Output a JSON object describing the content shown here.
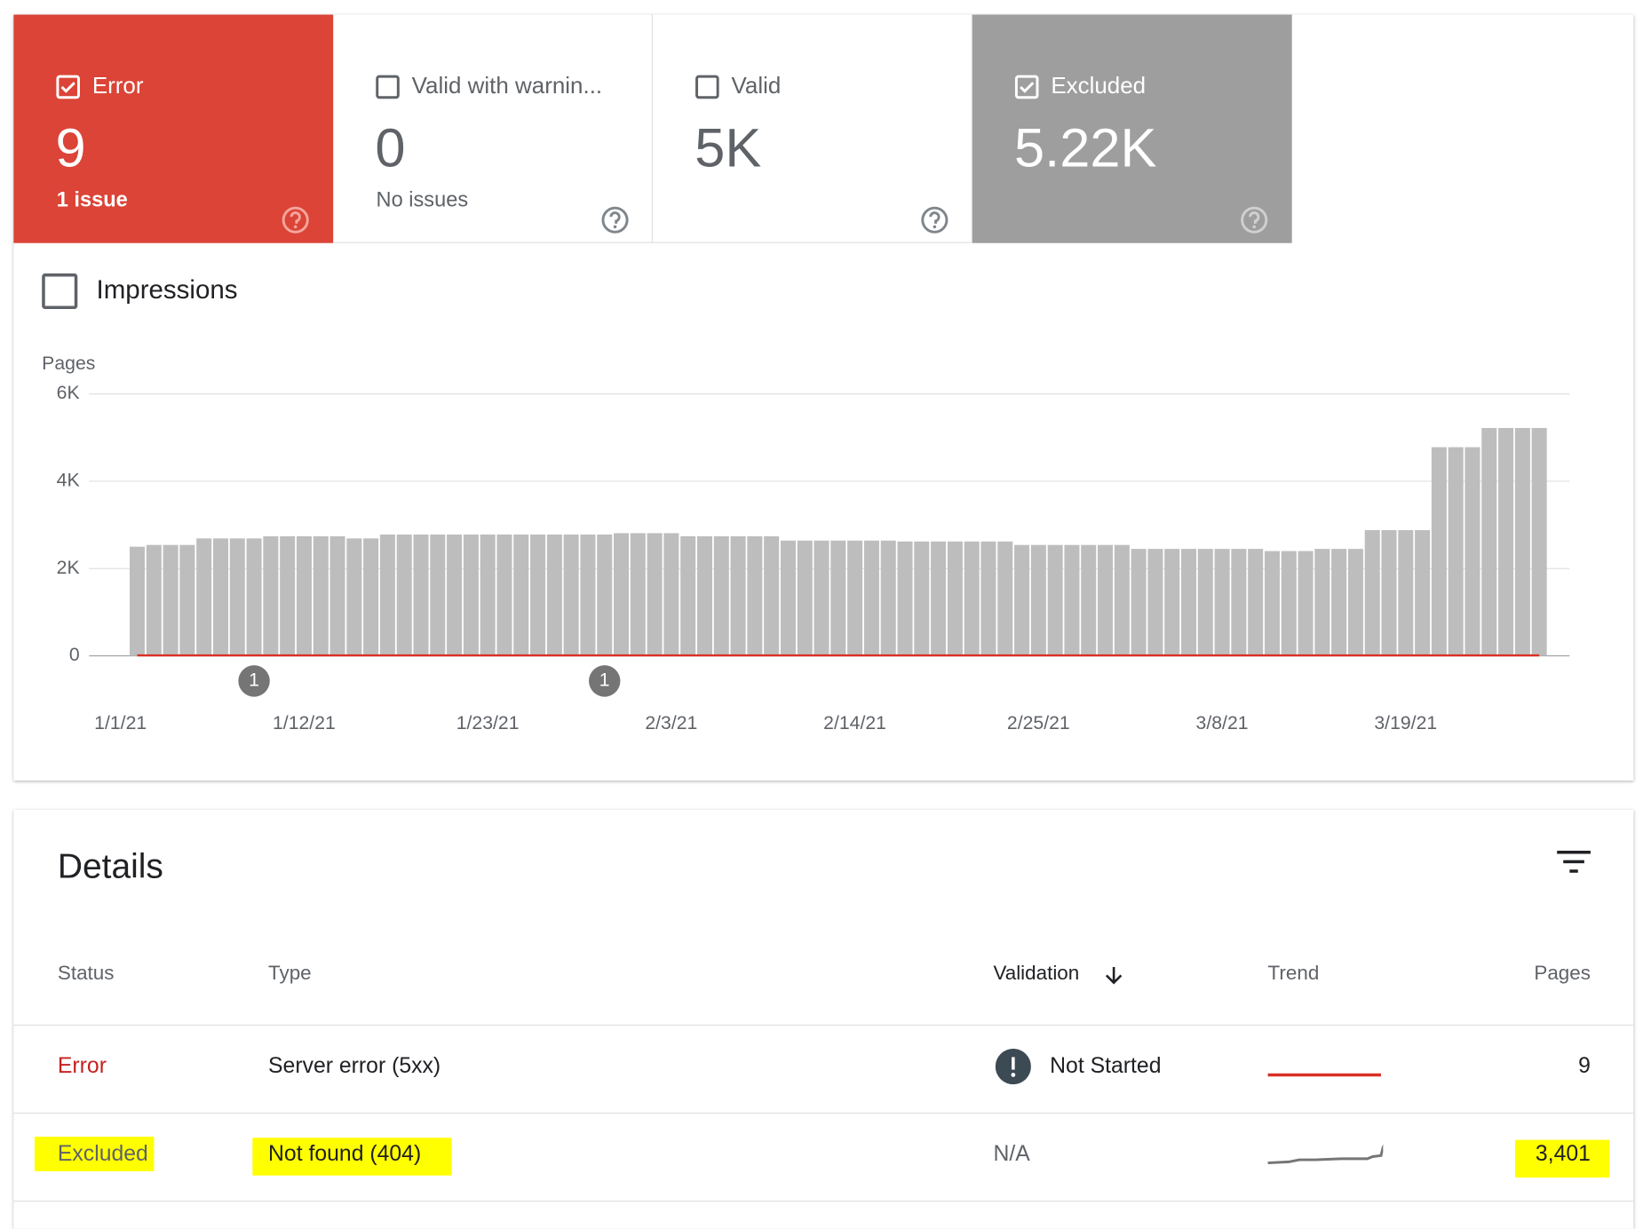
{
  "summary": {
    "tiles": [
      {
        "label": "Error",
        "value": "9",
        "sub": "1 issue",
        "checked": true
      },
      {
        "label": "Valid with warnin...",
        "value": "0",
        "sub": "No issues",
        "checked": false
      },
      {
        "label": "Valid",
        "value": "5K",
        "checked": false
      },
      {
        "label": "Excluded",
        "value": "5.22K",
        "checked": true
      }
    ],
    "impressions": "Impressions"
  },
  "chart_data": {
    "type": "bar",
    "y_label": "Pages",
    "categories": [
      "1/1/21",
      null,
      null,
      null,
      null,
      null,
      null,
      null,
      null,
      null,
      null,
      "1/12/21",
      null,
      null,
      null,
      null,
      null,
      null,
      null,
      null,
      null,
      null,
      "1/23/21",
      null,
      null,
      null,
      null,
      null,
      null,
      null,
      null,
      null,
      null,
      "2/3/21",
      null,
      null,
      null,
      null,
      null,
      null,
      null,
      null,
      null,
      null,
      "2/14/21",
      null,
      null,
      null,
      null,
      null,
      null,
      null,
      null,
      null,
      null,
      "2/25/21",
      null,
      null,
      null,
      null,
      null,
      null,
      null,
      null,
      null,
      null,
      "3/8/21",
      null,
      null,
      null,
      null,
      null,
      null,
      null,
      null,
      null,
      null,
      "3/19/21",
      null,
      null,
      null,
      null,
      null,
      null,
      null
    ],
    "series": [
      {
        "name": "Excluded",
        "type": "bar",
        "color": "#bdbdbd",
        "values": [
          2500,
          2540,
          2540,
          2540,
          2690,
          2690,
          2690,
          2690,
          2740,
          2740,
          2740,
          2740,
          2740,
          2690,
          2690,
          2780,
          2780,
          2780,
          2780,
          2780,
          2780,
          2780,
          2780,
          2780,
          2780,
          2780,
          2780,
          2780,
          2780,
          2810,
          2810,
          2810,
          2810,
          2740,
          2740,
          2740,
          2740,
          2740,
          2740,
          2640,
          2640,
          2640,
          2640,
          2640,
          2640,
          2640,
          2620,
          2620,
          2620,
          2620,
          2620,
          2620,
          2620,
          2540,
          2540,
          2540,
          2540,
          2540,
          2540,
          2540,
          2450,
          2450,
          2450,
          2450,
          2450,
          2450,
          2450,
          2450,
          2400,
          2400,
          2400,
          2450,
          2450,
          2450,
          2880,
          2880,
          2880,
          2880,
          4780,
          4780,
          4780,
          5220,
          5220,
          5220,
          5220
        ]
      },
      {
        "name": "Error",
        "type": "line",
        "color": "#d93025",
        "values": [
          9,
          9,
          9,
          9,
          9,
          9,
          9,
          9,
          9,
          9,
          9,
          9,
          9,
          9,
          9,
          9,
          9,
          9,
          9,
          9,
          9,
          9,
          9,
          9,
          9,
          9,
          9,
          9,
          9,
          9,
          9,
          9,
          9,
          9,
          9,
          9,
          9,
          9,
          9,
          9,
          9,
          9,
          9,
          9,
          9,
          9,
          9,
          9,
          9,
          9,
          9,
          9,
          9,
          9,
          9,
          9,
          9,
          9,
          9,
          9,
          9,
          9,
          9,
          9,
          9,
          9,
          9,
          9,
          9,
          9,
          9,
          9,
          9,
          9,
          9,
          9,
          9,
          9,
          9,
          9,
          9,
          9,
          9,
          9,
          9
        ]
      }
    ],
    "ylim": [
      0,
      6000
    ],
    "yticks": [
      0,
      {
        "value": 2000,
        "label": "2K"
      },
      {
        "value": 4000,
        "label": "4K"
      },
      {
        "value": 6000,
        "label": "6K"
      }
    ],
    "grid": true,
    "annotations": [
      {
        "index": 7,
        "text": "1"
      },
      {
        "index": 28,
        "text": "1"
      }
    ]
  },
  "details": {
    "title": "Details",
    "columns": [
      "Status",
      "Type",
      "Validation",
      "Trend",
      "Pages"
    ],
    "rows": [
      [
        "Error",
        "Server error (5xx)",
        "Not Started",
        "9"
      ],
      [
        "Excluded",
        "Not found (404)",
        "N/A",
        "3,401"
      ]
    ]
  }
}
